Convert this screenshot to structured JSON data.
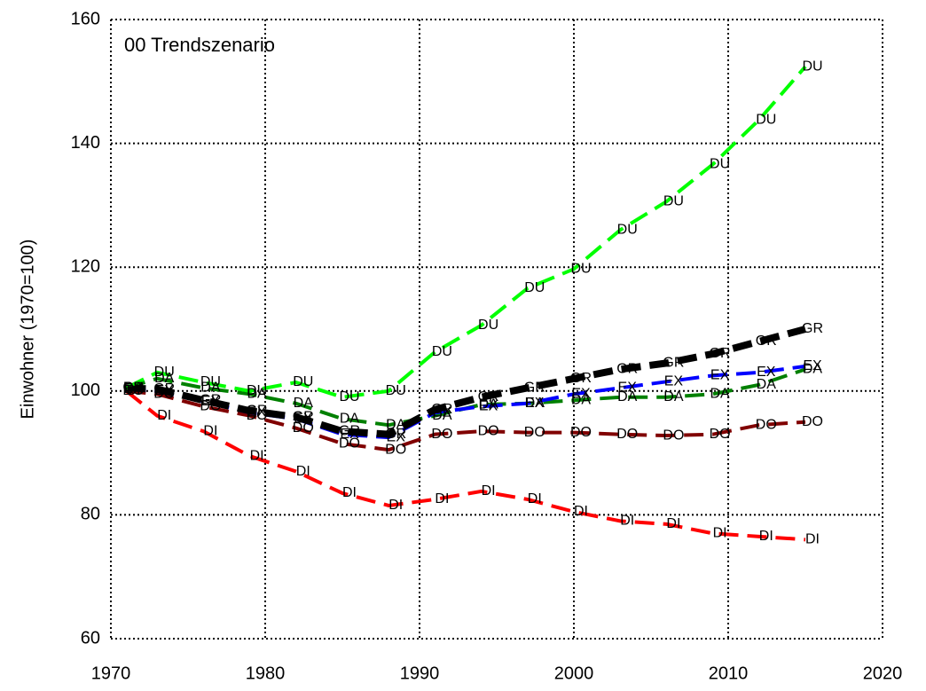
{
  "chart_data": {
    "type": "line",
    "title": "00 Trendszenario",
    "y_label": "Einwohner (1970=100)",
    "x": [
      1971,
      1973,
      1976,
      1979,
      1982,
      1985,
      1988,
      1991,
      1994,
      1997,
      2000,
      2003,
      2006,
      2009,
      2012,
      2015
    ],
    "xlim": [
      1970,
      2020
    ],
    "xticks": [
      1970,
      1980,
      1990,
      2000,
      2010,
      2020
    ],
    "ylim": [
      60,
      160
    ],
    "yticks": [
      60,
      80,
      100,
      120,
      140,
      160
    ],
    "grid": true,
    "series": [
      {
        "name": "DI",
        "color": "#ff0000",
        "values": [
          100,
          96,
          93.5,
          89.5,
          87,
          83.5,
          81.5,
          82.5,
          83.8,
          82.5,
          80.5,
          79,
          78.5,
          77,
          76.5,
          76
        ]
      },
      {
        "name": "DO",
        "color": "#800000",
        "values": [
          100,
          99.5,
          97.5,
          96,
          94,
          91.5,
          90.5,
          93,
          93.5,
          93.3,
          93.3,
          93,
          92.8,
          93,
          94.5,
          95
        ]
      },
      {
        "name": "DA",
        "color": "#008000",
        "values": [
          100.5,
          102,
          100.5,
          99.5,
          98,
          95.5,
          94.5,
          96,
          97.8,
          98,
          98.5,
          99,
          99,
          99.5,
          101,
          103.5
        ]
      },
      {
        "name": "EX",
        "color": "#0000ff",
        "values": [
          100.3,
          100,
          98.3,
          96.5,
          95.5,
          93,
          92.5,
          96.5,
          97.5,
          98,
          99.5,
          100.5,
          101.5,
          102.5,
          103,
          104
        ]
      },
      {
        "name": "GR",
        "color": "#000000",
        "values": [
          100.5,
          100.3,
          98.5,
          96.8,
          95.8,
          93.5,
          93,
          97,
          99,
          100.5,
          102,
          103.5,
          104.5,
          106,
          108,
          110
        ]
      },
      {
        "name": "DU",
        "color": "#00ff00",
        "values": [
          100.5,
          103,
          101.4,
          100,
          101.4,
          99,
          100,
          106.3,
          110.6,
          116.6,
          119.7,
          126,
          130.6,
          136.6,
          143.8,
          152.4
        ]
      }
    ]
  }
}
